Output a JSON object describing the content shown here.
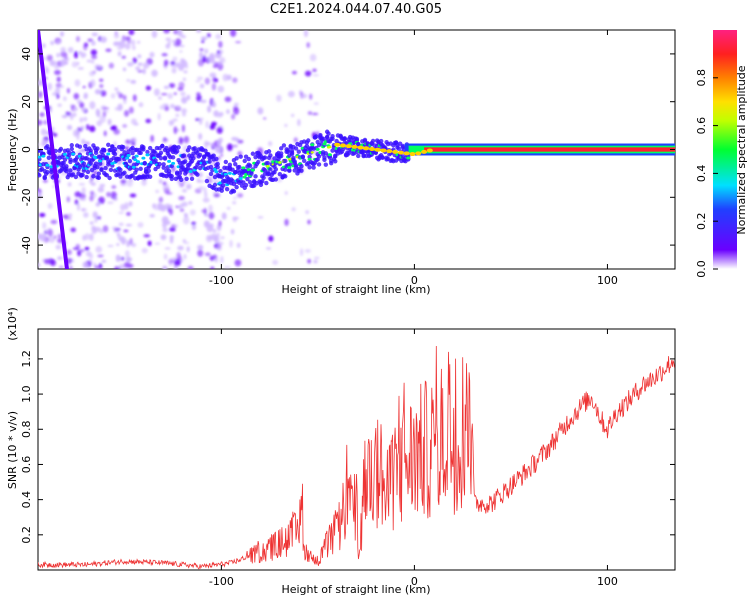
{
  "figure_title": "C2E1.2024.044.07.40.G05",
  "chart_data": [
    {
      "type": "heatmap",
      "xlabel": "Height of straight line (km)",
      "ylabel": "Frequency (Hz)",
      "xlim": [
        -195,
        135
      ],
      "ylim": [
        -50,
        50
      ],
      "xticks": [
        -100,
        0,
        100
      ],
      "yticks": [
        -40,
        -20,
        0,
        20,
        40
      ],
      "colorbar": {
        "label": "Normalized spectral amplitude",
        "range": [
          0,
          1
        ],
        "ticks": [
          0.0,
          0.2,
          0.4,
          0.6,
          0.8
        ]
      },
      "trace_center_hz": [
        {
          "x": -195,
          "y": -5
        },
        {
          "x": -150,
          "y": -5
        },
        {
          "x": -110,
          "y": -6
        },
        {
          "x": -100,
          "y": -12
        },
        {
          "x": -80,
          "y": -8
        },
        {
          "x": -60,
          "y": -3
        },
        {
          "x": -40,
          "y": 2
        },
        {
          "x": -20,
          "y": 0
        },
        {
          "x": 0,
          "y": -2
        },
        {
          "x": 10,
          "y": 0
        },
        {
          "x": 135,
          "y": 0
        }
      ],
      "colors": {
        "low": "#6a00ff",
        "mid": "#00e0ff",
        "high": "#ff0040"
      }
    },
    {
      "type": "line",
      "xlabel": "Height of straight line (km)",
      "ylabel": "SNR (10 * v/v)",
      "y_multiplier": "(x10⁴)",
      "xlim": [
        -195,
        135
      ],
      "ylim": [
        0,
        1.37
      ],
      "xticks": [
        -100,
        0,
        100
      ],
      "yticks": [
        0.2,
        0.4,
        0.6,
        0.8,
        1.0,
        1.2
      ],
      "series": [
        {
          "color": "#ee3333",
          "points": [
            [
              -195,
              0.03
            ],
            [
              -170,
              0.03
            ],
            [
              -150,
              0.05
            ],
            [
              -130,
              0.04
            ],
            [
              -110,
              0.02
            ],
            [
              -95,
              0.04
            ],
            [
              -85,
              0.08
            ],
            [
              -75,
              0.12
            ],
            [
              -65,
              0.18
            ],
            [
              -60,
              0.22
            ],
            [
              -58,
              0.35
            ],
            [
              -57,
              0.1
            ],
            [
              -50,
              0.05
            ],
            [
              -45,
              0.15
            ],
            [
              -38,
              0.25
            ],
            [
              -35,
              0.45
            ],
            [
              -32,
              0.3
            ],
            [
              -30,
              0.4
            ],
            [
              -29,
              0.05
            ],
            [
              -25,
              0.55
            ],
            [
              -22,
              0.5
            ],
            [
              -18,
              0.6
            ],
            [
              -15,
              0.4
            ],
            [
              -10,
              0.55
            ],
            [
              -5,
              0.6
            ],
            [
              0,
              0.65
            ],
            [
              10,
              0.7
            ],
            [
              20,
              0.78
            ],
            [
              30,
              0.85
            ],
            [
              31,
              0.38
            ],
            [
              40,
              0.38
            ],
            [
              50,
              0.48
            ],
            [
              60,
              0.58
            ],
            [
              70,
              0.7
            ],
            [
              80,
              0.85
            ],
            [
              88,
              0.95
            ],
            [
              92,
              0.98
            ],
            [
              97,
              0.85
            ],
            [
              100,
              0.8
            ],
            [
              105,
              0.9
            ],
            [
              110,
              0.95
            ],
            [
              118,
              1.05
            ],
            [
              125,
              1.1
            ],
            [
              130,
              1.15
            ],
            [
              135,
              1.2
            ]
          ]
        }
      ]
    }
  ]
}
